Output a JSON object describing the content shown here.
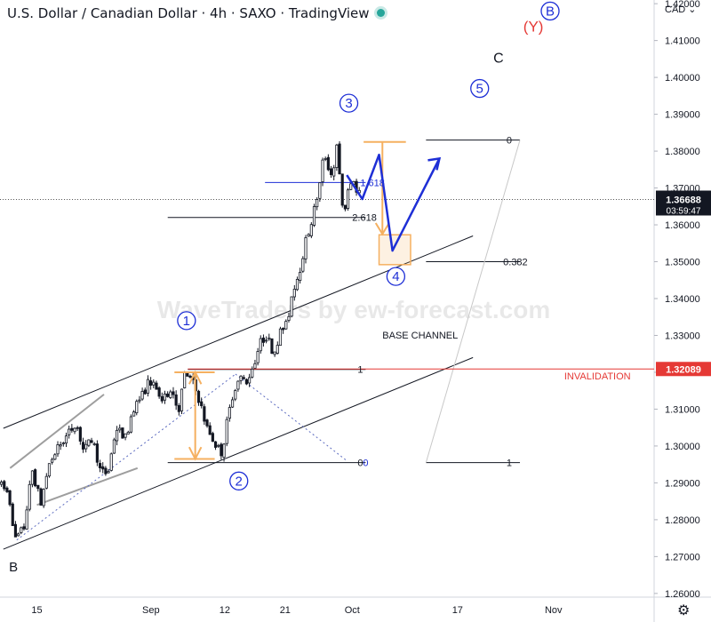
{
  "header": {
    "title": "U.S. Dollar / Canadian Dollar · 4h · SAXO · TradingView",
    "currency": "CAD",
    "currency_chevron": "⌄"
  },
  "watermark": "WaveTraders by ew-forecast.com",
  "colors": {
    "bull": "#131722",
    "blue": "#1e2fd6",
    "red": "#e53935",
    "orange": "#f5b060",
    "gray": "#9e9e9e",
    "price_tag": "#131722",
    "invalid_tag": "#e53935"
  },
  "icons": {
    "settings": "gear-icon",
    "live": "live-dot-icon"
  },
  "chart_data": {
    "type": "candlestick",
    "title": "U.S. Dollar / Canadian Dollar · 4h · SAXO · TradingView",
    "xlabel": "",
    "ylabel": "",
    "ylim": [
      1.259,
      1.421
    ],
    "y_ticks": [
      "1.26000",
      "1.27000",
      "1.28000",
      "1.29000",
      "1.30000",
      "1.31000",
      "1.32000",
      "1.33000",
      "1.34000",
      "1.35000",
      "1.36000",
      "1.37000",
      "1.38000",
      "1.39000",
      "1.40000",
      "1.41000",
      "1.42000"
    ],
    "x_ticks": [
      {
        "label": "15",
        "t": 8.0
      },
      {
        "label": "Sep",
        "t": 25.0
      },
      {
        "label": "12",
        "t": 36.0
      },
      {
        "label": "21",
        "t": 45.0
      },
      {
        "label": "Oct",
        "t": 55.0
      },
      {
        "label": "17",
        "t": 70.7
      },
      {
        "label": "Nov",
        "t": 85.0
      }
    ],
    "t_range": [
      2.5,
      100.0
    ],
    "series_path": [
      [
        2.5,
        1.29
      ],
      [
        4.0,
        1.287
      ],
      [
        5.0,
        1.2745
      ],
      [
        6.3,
        1.278
      ],
      [
        7.5,
        1.2935
      ],
      [
        8.8,
        1.2845
      ],
      [
        10.0,
        1.295
      ],
      [
        11.5,
        1.3
      ],
      [
        12.8,
        1.303
      ],
      [
        14.0,
        1.3065
      ],
      [
        15.2,
        1.2985
      ],
      [
        16.5,
        1.302
      ],
      [
        17.7,
        1.293
      ],
      [
        18.8,
        1.2925
      ],
      [
        20.0,
        1.305
      ],
      [
        21.5,
        1.302
      ],
      [
        22.5,
        1.31
      ],
      [
        24.0,
        1.314
      ],
      [
        25.0,
        1.318
      ],
      [
        26.0,
        1.315
      ],
      [
        27.0,
        1.312
      ],
      [
        28.2,
        1.316
      ],
      [
        29.3,
        1.3095
      ],
      [
        30.3,
        1.32
      ],
      [
        31.5,
        1.317
      ],
      [
        32.5,
        1.312
      ],
      [
        33.5,
        1.305
      ],
      [
        34.8,
        1.3005
      ],
      [
        35.8,
        1.298
      ],
      [
        36.5,
        1.306
      ],
      [
        37.5,
        1.315
      ],
      [
        38.5,
        1.3185
      ],
      [
        39.5,
        1.3175
      ],
      [
        40.5,
        1.322
      ],
      [
        41.5,
        1.328
      ],
      [
        42.5,
        1.33
      ],
      [
        43.5,
        1.325
      ],
      [
        44.5,
        1.331
      ],
      [
        45.5,
        1.333
      ],
      [
        46.3,
        1.342
      ],
      [
        47.3,
        1.347
      ],
      [
        48.2,
        1.355
      ],
      [
        49.0,
        1.36
      ],
      [
        49.8,
        1.366
      ],
      [
        50.5,
        1.372
      ],
      [
        51.0,
        1.38
      ],
      [
        51.6,
        1.376
      ],
      [
        52.2,
        1.373
      ],
      [
        53.0,
        1.382
      ],
      [
        53.5,
        1.368
      ],
      [
        54.0,
        1.363
      ],
      [
        54.7,
        1.37
      ],
      [
        55.3,
        1.372
      ],
      [
        56.0,
        1.369
      ]
    ],
    "last_price": "1.36688",
    "countdown": "03:59:47",
    "invalidation_price": "1.32089",
    "annotations": {
      "wave_1": "1",
      "wave_2": "2",
      "wave_3": "3",
      "wave_4": "4",
      "wave_5": "5",
      "wave_B_top": "B",
      "wave_Y": "(Y)",
      "wave_C": "C",
      "wave_B_low": "B",
      "base_channel": "BASE CHANNEL",
      "invalidation": "INVALIDATION",
      "fib_0": "0",
      "fib_0382": "0.382",
      "fib_1_right": "1",
      "fib_1_left": "1",
      "fib_00": "0",
      "fib_0_b": "0",
      "fib_2618": "2.618",
      "fib_1618": "1.618"
    },
    "wave_points": {
      "w1": [
        30.5,
        1.321
      ],
      "w2": [
        37.5,
        1.296
      ],
      "w3": [
        54.2,
        1.384
      ],
      "w4": [
        59.8,
        1.353
      ],
      "proj_path": [
        [
          54.2,
          1.3735
        ],
        [
          56.5,
          1.367
        ],
        [
          59.0,
          1.379
        ],
        [
          61.0,
          1.353
        ],
        [
          68.0,
          1.378
        ]
      ]
    },
    "fib_levels": {
      "zero_top": 1.383,
      "level_2618": 1.362,
      "level_1618": 1.3715,
      "level_0382": 1.35,
      "level_1": 1.3208,
      "level_0_bottom": 1.2955
    },
    "channels": {
      "outer_upper": [
        [
          3.0,
          1.3048
        ],
        [
          73.0,
          1.357
        ]
      ],
      "lower": [
        [
          3.0,
          1.272
        ],
        [
          73.0,
          1.324
        ]
      ],
      "inner_upper": [
        [
          4.0,
          1.294
        ],
        [
          18.0,
          1.314
        ]
      ],
      "inner_lower": [
        [
          8.0,
          1.284
        ],
        [
          23.0,
          1.294
        ]
      ]
    }
  }
}
